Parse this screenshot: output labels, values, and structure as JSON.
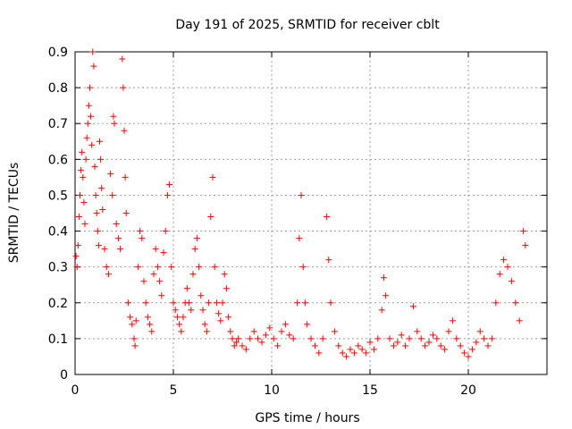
{
  "chart_data": {
    "type": "scatter",
    "title": "Day 191 of 2025, SRMTID for receiver cblt",
    "xlabel": "GPS time / hours",
    "ylabel": "SRMTID / TECUs",
    "xlim": [
      0,
      24
    ],
    "ylim": [
      0,
      0.9
    ],
    "xticks": [
      0,
      5,
      10,
      15,
      20
    ],
    "xtick_labels": [
      "0",
      "5",
      "10",
      "15",
      "20"
    ],
    "yticks": [
      0,
      0.1,
      0.2,
      0.3,
      0.4,
      0.5,
      0.6,
      0.7,
      0.8,
      0.9
    ],
    "ytick_labels": [
      "0",
      "0.1",
      "0.2",
      "0.3",
      "0.4",
      "0.5",
      "0.6",
      "0.7",
      "0.8",
      "0.9"
    ],
    "grid": true,
    "marker": "+",
    "color": "#ff0000",
    "series": [
      {
        "name": "SRMTID",
        "points": [
          [
            0.05,
            0.33
          ],
          [
            0.1,
            0.3
          ],
          [
            0.15,
            0.36
          ],
          [
            0.2,
            0.44
          ],
          [
            0.25,
            0.5
          ],
          [
            0.3,
            0.57
          ],
          [
            0.35,
            0.62
          ],
          [
            0.4,
            0.55
          ],
          [
            0.45,
            0.48
          ],
          [
            0.5,
            0.42
          ],
          [
            0.55,
            0.6
          ],
          [
            0.6,
            0.66
          ],
          [
            0.65,
            0.7
          ],
          [
            0.7,
            0.75
          ],
          [
            0.75,
            0.8
          ],
          [
            0.8,
            0.72
          ],
          [
            0.85,
            0.64
          ],
          [
            0.9,
            0.9
          ],
          [
            0.95,
            0.86
          ],
          [
            1.0,
            0.58
          ],
          [
            1.05,
            0.5
          ],
          [
            1.1,
            0.45
          ],
          [
            1.15,
            0.4
          ],
          [
            1.2,
            0.36
          ],
          [
            1.25,
            0.65
          ],
          [
            1.3,
            0.6
          ],
          [
            1.35,
            0.52
          ],
          [
            1.4,
            0.46
          ],
          [
            1.5,
            0.35
          ],
          [
            1.6,
            0.3
          ],
          [
            1.7,
            0.28
          ],
          [
            1.8,
            0.56
          ],
          [
            1.9,
            0.5
          ],
          [
            1.95,
            0.72
          ],
          [
            2.0,
            0.7
          ],
          [
            2.1,
            0.42
          ],
          [
            2.2,
            0.38
          ],
          [
            2.3,
            0.35
          ],
          [
            2.4,
            0.88
          ],
          [
            2.45,
            0.8
          ],
          [
            2.5,
            0.68
          ],
          [
            2.55,
            0.55
          ],
          [
            2.6,
            0.45
          ],
          [
            2.7,
            0.2
          ],
          [
            2.8,
            0.16
          ],
          [
            2.9,
            0.14
          ],
          [
            3.0,
            0.1
          ],
          [
            3.05,
            0.08
          ],
          [
            3.1,
            0.15
          ],
          [
            3.2,
            0.3
          ],
          [
            3.3,
            0.4
          ],
          [
            3.4,
            0.38
          ],
          [
            3.5,
            0.26
          ],
          [
            3.6,
            0.2
          ],
          [
            3.7,
            0.16
          ],
          [
            3.8,
            0.14
          ],
          [
            3.9,
            0.12
          ],
          [
            4.0,
            0.28
          ],
          [
            4.1,
            0.35
          ],
          [
            4.2,
            0.3
          ],
          [
            4.3,
            0.26
          ],
          [
            4.4,
            0.22
          ],
          [
            4.5,
            0.34
          ],
          [
            4.6,
            0.4
          ],
          [
            4.7,
            0.5
          ],
          [
            4.8,
            0.53
          ],
          [
            4.9,
            0.3
          ],
          [
            5.0,
            0.2
          ],
          [
            5.1,
            0.18
          ],
          [
            5.2,
            0.16
          ],
          [
            5.3,
            0.14
          ],
          [
            5.4,
            0.12
          ],
          [
            5.5,
            0.16
          ],
          [
            5.6,
            0.2
          ],
          [
            5.7,
            0.24
          ],
          [
            5.8,
            0.2
          ],
          [
            5.9,
            0.18
          ],
          [
            6.0,
            0.28
          ],
          [
            6.1,
            0.35
          ],
          [
            6.2,
            0.38
          ],
          [
            6.3,
            0.3
          ],
          [
            6.4,
            0.22
          ],
          [
            6.5,
            0.18
          ],
          [
            6.6,
            0.14
          ],
          [
            6.7,
            0.12
          ],
          [
            6.8,
            0.2
          ],
          [
            6.9,
            0.44
          ],
          [
            7.0,
            0.55
          ],
          [
            7.1,
            0.3
          ],
          [
            7.2,
            0.2
          ],
          [
            7.3,
            0.17
          ],
          [
            7.4,
            0.15
          ],
          [
            7.5,
            0.2
          ],
          [
            7.6,
            0.28
          ],
          [
            7.7,
            0.24
          ],
          [
            7.8,
            0.16
          ],
          [
            7.9,
            0.12
          ],
          [
            8.0,
            0.1
          ],
          [
            8.1,
            0.08
          ],
          [
            8.2,
            0.09
          ],
          [
            8.3,
            0.1
          ],
          [
            8.5,
            0.08
          ],
          [
            8.7,
            0.07
          ],
          [
            8.9,
            0.1
          ],
          [
            9.1,
            0.12
          ],
          [
            9.3,
            0.1
          ],
          [
            9.5,
            0.09
          ],
          [
            9.7,
            0.11
          ],
          [
            9.9,
            0.13
          ],
          [
            10.1,
            0.1
          ],
          [
            10.3,
            0.08
          ],
          [
            10.5,
            0.12
          ],
          [
            10.7,
            0.14
          ],
          [
            10.9,
            0.11
          ],
          [
            11.1,
            0.1
          ],
          [
            11.3,
            0.2
          ],
          [
            11.4,
            0.38
          ],
          [
            11.5,
            0.5
          ],
          [
            11.6,
            0.3
          ],
          [
            11.7,
            0.2
          ],
          [
            11.8,
            0.14
          ],
          [
            12.0,
            0.1
          ],
          [
            12.2,
            0.08
          ],
          [
            12.4,
            0.06
          ],
          [
            12.6,
            0.1
          ],
          [
            12.8,
            0.44
          ],
          [
            12.9,
            0.32
          ],
          [
            13.0,
            0.2
          ],
          [
            13.2,
            0.12
          ],
          [
            13.4,
            0.08
          ],
          [
            13.6,
            0.06
          ],
          [
            13.8,
            0.05
          ],
          [
            14.0,
            0.07
          ],
          [
            14.2,
            0.06
          ],
          [
            14.4,
            0.08
          ],
          [
            14.6,
            0.07
          ],
          [
            14.8,
            0.06
          ],
          [
            15.0,
            0.09
          ],
          [
            15.2,
            0.07
          ],
          [
            15.4,
            0.1
          ],
          [
            15.6,
            0.18
          ],
          [
            15.7,
            0.27
          ],
          [
            15.8,
            0.22
          ],
          [
            16.0,
            0.1
          ],
          [
            16.2,
            0.08
          ],
          [
            16.4,
            0.09
          ],
          [
            16.6,
            0.11
          ],
          [
            16.8,
            0.08
          ],
          [
            17.0,
            0.1
          ],
          [
            17.2,
            0.19
          ],
          [
            17.4,
            0.12
          ],
          [
            17.6,
            0.1
          ],
          [
            17.8,
            0.08
          ],
          [
            18.0,
            0.09
          ],
          [
            18.2,
            0.11
          ],
          [
            18.4,
            0.1
          ],
          [
            18.6,
            0.08
          ],
          [
            18.8,
            0.07
          ],
          [
            19.0,
            0.12
          ],
          [
            19.2,
            0.15
          ],
          [
            19.4,
            0.1
          ],
          [
            19.6,
            0.08
          ],
          [
            19.8,
            0.06
          ],
          [
            20.0,
            0.05
          ],
          [
            20.2,
            0.07
          ],
          [
            20.4,
            0.09
          ],
          [
            20.6,
            0.12
          ],
          [
            20.8,
            0.1
          ],
          [
            21.0,
            0.08
          ],
          [
            21.2,
            0.1
          ],
          [
            21.4,
            0.2
          ],
          [
            21.6,
            0.28
          ],
          [
            21.8,
            0.32
          ],
          [
            22.0,
            0.3
          ],
          [
            22.2,
            0.26
          ],
          [
            22.4,
            0.2
          ],
          [
            22.6,
            0.15
          ],
          [
            22.8,
            0.4
          ],
          [
            22.9,
            0.36
          ]
        ]
      }
    ]
  }
}
